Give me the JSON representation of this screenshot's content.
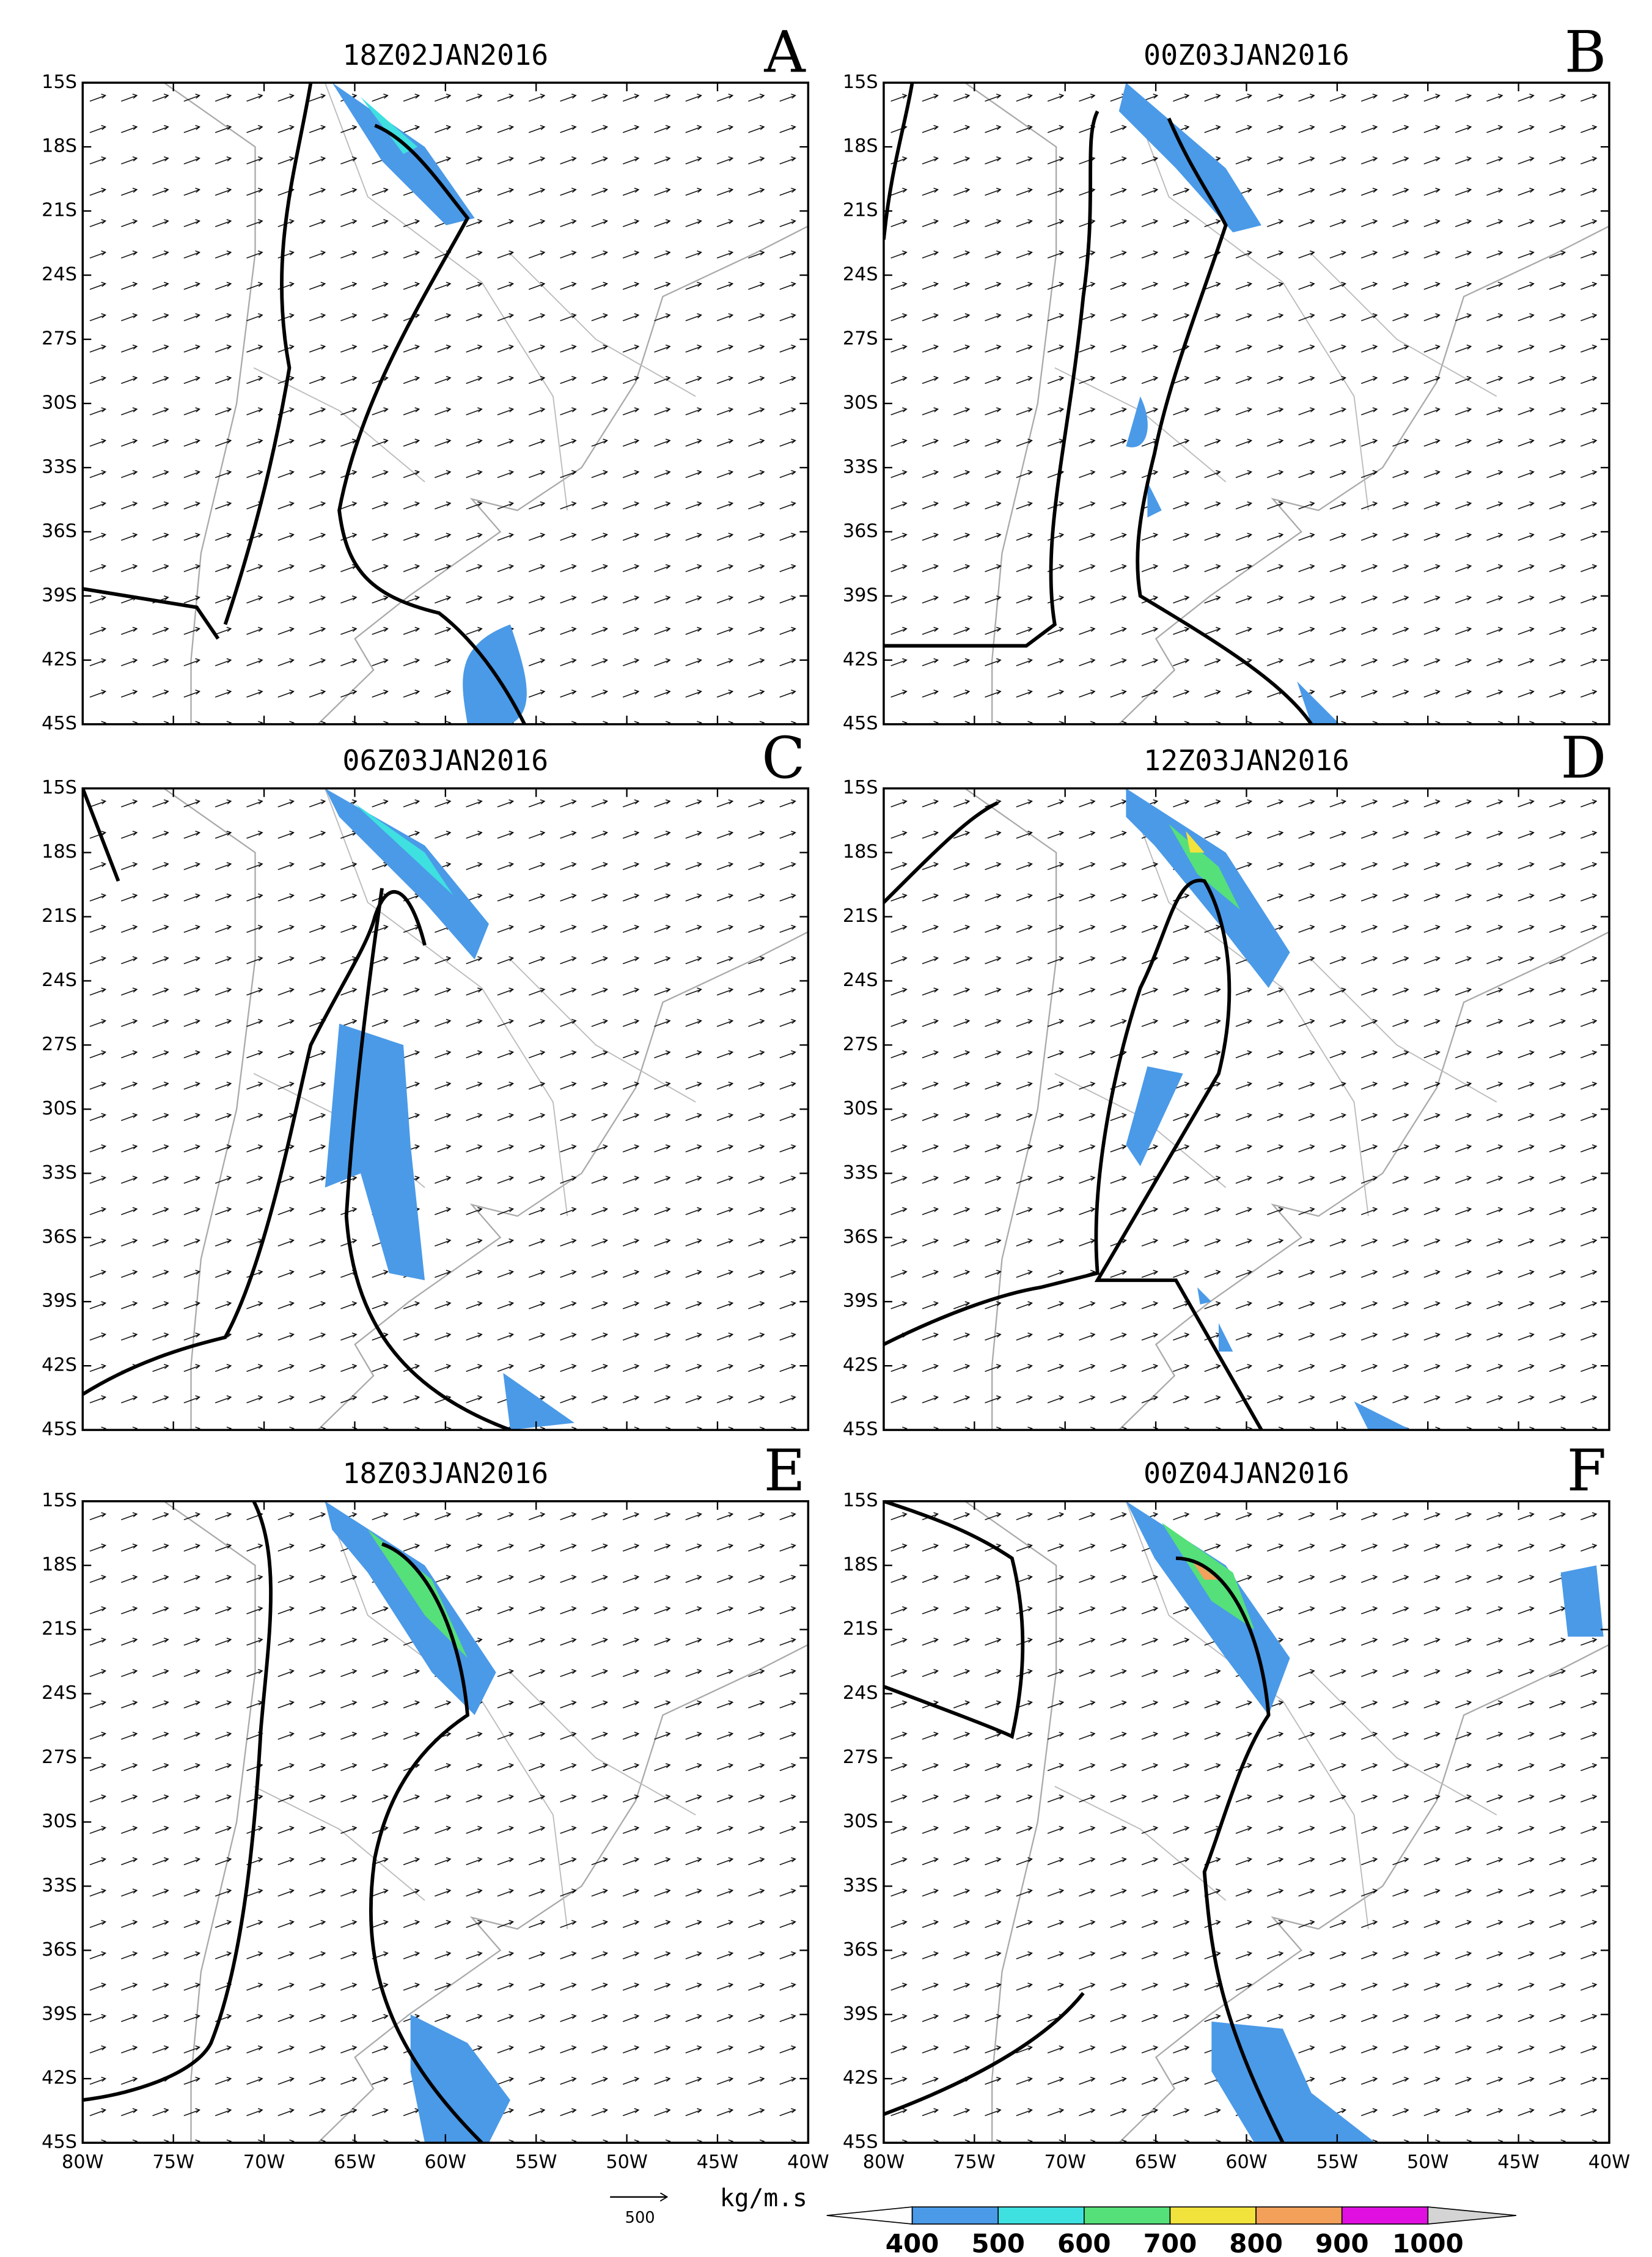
{
  "figure": {
    "panels": [
      {
        "title": "18Z02JAN2016",
        "letter": "A"
      },
      {
        "title": "00Z03JAN2016",
        "letter": "B"
      },
      {
        "title": "06Z03JAN2016",
        "letter": "C"
      },
      {
        "title": "12Z03JAN2016",
        "letter": "D"
      },
      {
        "title": "18Z03JAN2016",
        "letter": "E"
      },
      {
        "title": "00Z04JAN2016",
        "letter": "F"
      }
    ],
    "lonlim": [
      -80,
      -40
    ],
    "latlim": [
      -45,
      -15
    ],
    "lon_ticks": [
      {
        "value": -80,
        "label": "80W"
      },
      {
        "value": -75,
        "label": "75W"
      },
      {
        "value": -70,
        "label": "70W"
      },
      {
        "value": -65,
        "label": "65W"
      },
      {
        "value": -60,
        "label": "60W"
      },
      {
        "value": -55,
        "label": "55W"
      },
      {
        "value": -50,
        "label": "50W"
      },
      {
        "value": -45,
        "label": "45W"
      },
      {
        "value": -40,
        "label": "40W"
      }
    ],
    "lat_ticks": [
      {
        "value": -15,
        "label": "15S"
      },
      {
        "value": -18,
        "label": "18S"
      },
      {
        "value": -21,
        "label": "21S"
      },
      {
        "value": -24,
        "label": "24S"
      },
      {
        "value": -27,
        "label": "27S"
      },
      {
        "value": -30,
        "label": "30S"
      },
      {
        "value": -33,
        "label": "33S"
      },
      {
        "value": -36,
        "label": "36S"
      },
      {
        "value": -39,
        "label": "39S"
      },
      {
        "value": -42,
        "label": "42S"
      },
      {
        "value": -45,
        "label": "45S"
      }
    ],
    "colorbar": {
      "levels": [
        400,
        500,
        600,
        700,
        800,
        900,
        1000
      ],
      "colors": [
        "#4a9ae8",
        "#3fe0e0",
        "#55e07a",
        "#f2e23c",
        "#f2a05a",
        "#e010e0"
      ],
      "under_color": "#ffffff",
      "over_color": "#d4d4d4",
      "unit": "kg/m.s"
    },
    "reference_vector": {
      "value": 500
    }
  }
}
